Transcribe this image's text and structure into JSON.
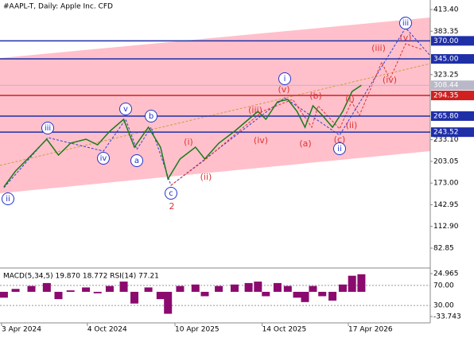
{
  "chart_data": {
    "type": "line",
    "title": "#AAPL-T, Daily:  Apple Inc. CFD",
    "color": "#1a7a1a",
    "x": [
      "8 Apr 2024",
      "3 May 2024",
      "6 Jun 2024",
      "9 Jul 2024",
      "3 Aug 2024",
      "29 Aug 2024",
      "1 Oct 2024",
      "26 Oct 2024",
      "21 Nov 2024",
      "21 Dec 2024",
      "13 Jan 2025",
      "12 Feb 2025",
      "10 Mar 2025",
      "26 Mar 2025",
      "21 Apr 2025",
      "24 May 2025",
      "13 Jun 2025",
      "13 Jul 2025",
      "16 Aug 2025",
      "15 Sep 2025",
      "5 Oct 2025",
      "22 Oct 2025",
      "16 Nov 2025",
      "8 Dec 2025",
      "28 Dec 2025",
      "14 Jan 2026",
      "31 Jan 2026",
      "20 Feb 2026",
      "14 Mar 2026",
      "5 Apr 2026",
      "25 Apr 2026",
      "15 May 2026"
    ],
    "values": [
      167.7,
      189.7,
      211.8,
      233.8,
      211.8,
      228.3,
      233.8,
      226,
      244.8,
      261.3,
      222.8,
      250.3,
      222.8,
      178.7,
      206.3,
      222.8,
      206.3,
      228.3,
      244.8,
      261.3,
      272.4,
      261.3,
      285.6,
      288.9,
      272.4,
      250.3,
      280.1,
      266.9,
      250.3,
      272.4,
      299.9,
      308.44
    ],
    "xticks": [
      "3 Apr 2024",
      "4 Oct 2024",
      "10 Apr 2025",
      "14 Oct 2025",
      "17 Apr 2026"
    ],
    "ylim": [
      57.5,
      426.6
    ],
    "yticks": [
      {
        "value": 413.4,
        "label": "413.40"
      },
      {
        "value": 383.35,
        "label": "383.35"
      },
      {
        "value": 323.25,
        "label": "323.25"
      },
      {
        "value": 233.1,
        "label": "233.10"
      },
      {
        "value": 203.05,
        "label": "203.05"
      },
      {
        "value": 173,
        "label": "173.00"
      },
      {
        "value": 142.95,
        "label": "142.95"
      },
      {
        "value": 112.9,
        "label": "112.90"
      },
      {
        "value": 82.85,
        "label": "82.85"
      }
    ],
    "levels": [
      {
        "value": 370,
        "label": "370.00",
        "color": "#1f2fa8"
      },
      {
        "value": 345,
        "label": "345.00",
        "color": "#1f2fa8"
      },
      {
        "value": 308.44,
        "label": "308.44",
        "color": "#b8b8c8"
      },
      {
        "value": 294.35,
        "label": "294.35",
        "color": "#d02020"
      },
      {
        "value": 265.8,
        "label": "265.80",
        "color": "#1f2fa8"
      },
      {
        "value": 243.52,
        "label": "243.52",
        "color": "#1f2fa8"
      }
    ],
    "annotations": [
      {
        "text": "ii",
        "style": "circle"
      },
      {
        "text": "iii",
        "style": "circle"
      },
      {
        "text": "iv",
        "style": "circle"
      },
      {
        "text": "v",
        "style": "circle"
      },
      {
        "text": "a",
        "style": "circle"
      },
      {
        "text": "b",
        "style": "circle"
      },
      {
        "text": "c",
        "style": "circle"
      },
      {
        "text": "i",
        "style": "circle"
      },
      {
        "text": "ii",
        "style": "circle"
      },
      {
        "text": "iii",
        "style": "circle"
      },
      {
        "text": "2",
        "style": "red"
      },
      {
        "text": "(i)",
        "style": "red"
      },
      {
        "text": "(ii)",
        "style": "red"
      },
      {
        "text": "(iii)",
        "style": "red"
      },
      {
        "text": "(iv)",
        "style": "red"
      },
      {
        "text": "(v)",
        "style": "red"
      },
      {
        "text": "(a)",
        "style": "red"
      },
      {
        "text": "(b)",
        "style": "red"
      },
      {
        "text": "(c)",
        "style": "red"
      },
      {
        "text": "(i)",
        "style": "red"
      },
      {
        "text": "(ii)",
        "style": "red"
      },
      {
        "text": "(iii)",
        "style": "red"
      },
      {
        "text": "(iv)",
        "style": "red"
      },
      {
        "text": "(v)",
        "style": "red"
      }
    ],
    "indicator": {
      "title": "MACD(5,34,5) 19.870 18.772 RSI(14) 77.21",
      "color": "#8b0a6e",
      "values": [
        -8,
        4,
        8,
        12,
        -10,
        2,
        6,
        -2,
        8,
        14,
        -16,
        6,
        -10,
        -30,
        8,
        10,
        -6,
        8,
        10,
        12,
        14,
        -6,
        12,
        8,
        -8,
        -14,
        8,
        -6,
        -12,
        10,
        22,
        24
      ],
      "ylim": [
        -39.2,
        29.3
      ],
      "yticks": [
        {
          "value": 24.965,
          "label": "24.965"
        },
        {
          "value": -33.743,
          "label": "-33.743"
        }
      ],
      "rsi_ylim": [
        0,
        100
      ],
      "rsi_ticks": [
        {
          "value": 70,
          "label": "70.00"
        },
        {
          "value": 30,
          "label": "30.00"
        }
      ]
    }
  }
}
